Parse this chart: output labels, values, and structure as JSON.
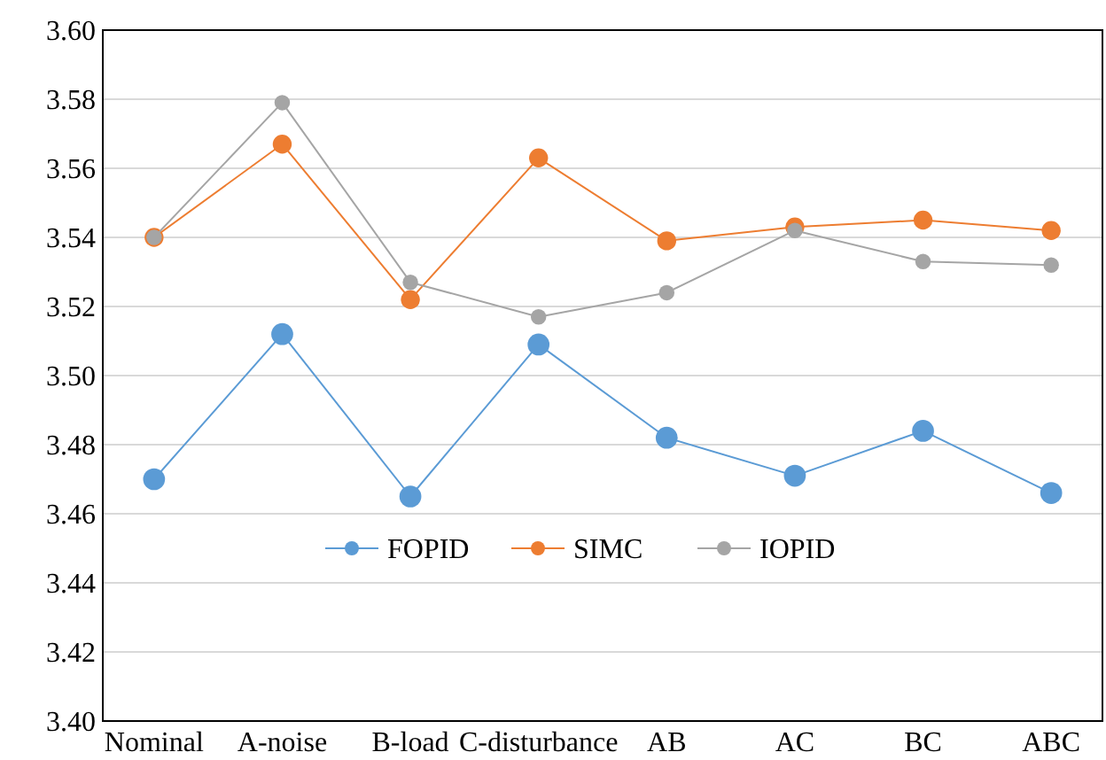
{
  "chart_data": {
    "type": "line",
    "categories": [
      "Nominal",
      "A-noise",
      "B-load",
      "C-disturbance",
      "AB",
      "AC",
      "BC",
      "ABC"
    ],
    "series": [
      {
        "name": "FOPID",
        "color": "#5b9bd5",
        "values": [
          3.47,
          3.512,
          3.465,
          3.509,
          3.482,
          3.471,
          3.484,
          3.466
        ]
      },
      {
        "name": "SIMC",
        "color": "#ed7d31",
        "values": [
          3.54,
          3.567,
          3.522,
          3.563,
          3.539,
          3.543,
          3.545,
          3.542
        ]
      },
      {
        "name": "IOPID",
        "color": "#a5a5a5",
        "values": [
          3.54,
          3.579,
          3.527,
          3.517,
          3.524,
          3.542,
          3.533,
          3.532
        ]
      }
    ],
    "ylim": [
      3.4,
      3.6
    ],
    "yticks": [
      {
        "value": 3.4,
        "label": "3.40"
      },
      {
        "value": 3.42,
        "label": "3.42"
      },
      {
        "value": 3.44,
        "label": "3.44"
      },
      {
        "value": 3.46,
        "label": "3.46"
      },
      {
        "value": 3.48,
        "label": "3.48"
      },
      {
        "value": 3.5,
        "label": "3.50"
      },
      {
        "value": 3.52,
        "label": "3.52"
      },
      {
        "value": 3.54,
        "label": "3.54"
      },
      {
        "value": 3.56,
        "label": "3.56"
      },
      {
        "value": 3.58,
        "label": "3.58"
      },
      {
        "value": 3.6,
        "label": "3.60"
      }
    ],
    "grid": "y",
    "legend": "bottom",
    "marker": "circle",
    "line_style": "solid"
  }
}
